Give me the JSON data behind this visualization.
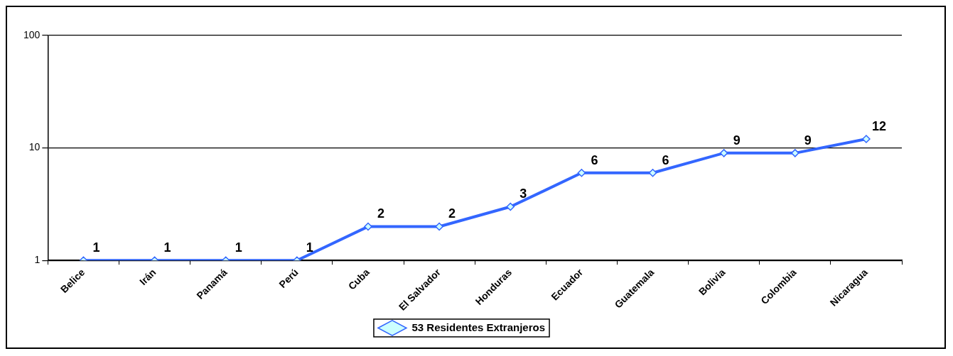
{
  "chart_data": {
    "type": "line",
    "categories": [
      "Belice",
      "Irán",
      "Panamá",
      "Perú",
      "Cuba",
      "El Salvador",
      "Honduras",
      "Ecuador",
      "Guatemala",
      "Bolivia",
      "Colombia",
      "Nicaragua"
    ],
    "series": [
      {
        "name": "53 Residentes Extranjeros",
        "color": "#3366ff",
        "values": [
          1,
          1,
          1,
          1,
          2,
          2,
          3,
          6,
          6,
          9,
          9,
          12
        ]
      }
    ],
    "log": true,
    "ylim": [
      1,
      100
    ],
    "yticks": [
      1,
      10,
      100
    ],
    "grid": "y",
    "legend": "bottom",
    "marker": "diamond",
    "data_labels": true
  }
}
